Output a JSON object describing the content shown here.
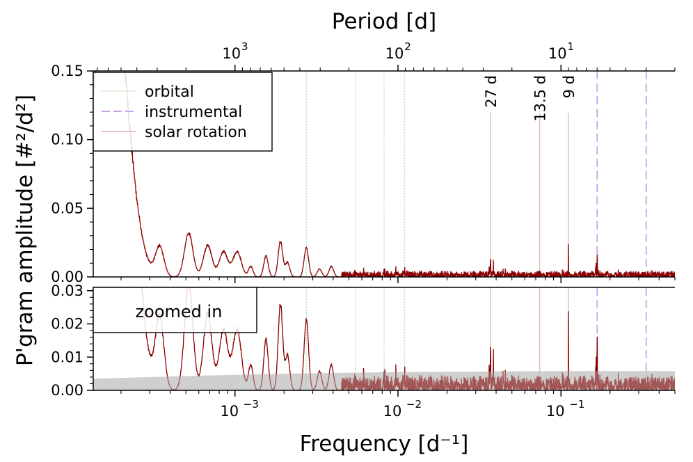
{
  "chart_data": {
    "type": "line",
    "xlabel": "Frequency [d⁻¹]",
    "top_xlabel": "Period [d]",
    "ylabel": "P'gram amplitude [#²/d²]",
    "x_scale": "log",
    "xlim": [
      0.000135,
      0.5
    ],
    "x_ticks": [
      {
        "value": 0.001,
        "label": "10",
        "exp": "−3"
      },
      {
        "value": 0.01,
        "label": "10",
        "exp": "−2"
      },
      {
        "value": 0.1,
        "label": "10",
        "exp": "−1"
      }
    ],
    "top_ticks": [
      {
        "period": 1000,
        "label": "10",
        "exp": "3"
      },
      {
        "period": 100,
        "label": "10",
        "exp": "2"
      },
      {
        "period": 10,
        "label": "10",
        "exp": "1"
      }
    ],
    "panels": [
      {
        "name": "main",
        "ylim": [
          0,
          0.15
        ],
        "y_ticks": [
          "0.00",
          "0.05",
          "0.10",
          "0.15"
        ],
        "y_tick_values": [
          0,
          0.05,
          0.1,
          0.15
        ]
      },
      {
        "name": "zoom",
        "ylim": [
          0,
          0.031
        ],
        "y_ticks": [
          "0.00",
          "0.01",
          "0.02",
          "0.03"
        ],
        "y_tick_values": [
          0,
          0.01,
          0.02,
          0.03
        ],
        "inset_label": "zoomed in"
      }
    ],
    "legend": {
      "position": "top-left",
      "entries": [
        {
          "label": "orbital",
          "color": "#b6dcb0",
          "style": "dotted"
        },
        {
          "label": "instrumental",
          "color": "#c9a2ec",
          "style": "dashed"
        },
        {
          "label": "solar rotation",
          "color": "#e3c2bd",
          "style": "solid"
        }
      ]
    },
    "reference_lines": {
      "orbital": [
        0.00274,
        0.00548,
        0.00822,
        0.01096
      ],
      "instrumental": [
        0.1667,
        0.3333
      ],
      "solar_rotation": [
        {
          "freq": 0.037,
          "label": "27 d"
        },
        {
          "freq": 0.074,
          "label": "13.5 d"
        },
        {
          "freq": 0.111,
          "label": "9 d"
        }
      ]
    },
    "peaks": [
      {
        "x": 0.000155,
        "y": 0.133
      },
      {
        "x": 0.00019,
        "y": 0.136
      },
      {
        "x": 0.000345,
        "y": 0.022
      },
      {
        "x": 0.00052,
        "y": 0.033
      },
      {
        "x": 0.00068,
        "y": 0.024
      },
      {
        "x": 0.00085,
        "y": 0.019
      },
      {
        "x": 0.00103,
        "y": 0.019
      },
      {
        "x": 0.00125,
        "y": 0.008
      },
      {
        "x": 0.00155,
        "y": 0.016
      },
      {
        "x": 0.0019,
        "y": 0.027
      },
      {
        "x": 0.0021,
        "y": 0.011
      },
      {
        "x": 0.00274,
        "y": 0.022
      },
      {
        "x": 0.0033,
        "y": 0.006
      },
      {
        "x": 0.0039,
        "y": 0.008
      },
      {
        "x": 0.0047,
        "y": 0.004
      },
      {
        "x": 0.0055,
        "y": 0.008
      },
      {
        "x": 0.0068,
        "y": 0.004
      },
      {
        "x": 0.0083,
        "y": 0.009
      },
      {
        "x": 0.0097,
        "y": 0.008
      },
      {
        "x": 0.011,
        "y": 0.009
      },
      {
        "x": 0.037,
        "y": 0.026
      },
      {
        "x": 0.0385,
        "y": 0.013
      },
      {
        "x": 0.111,
        "y": 0.025
      },
      {
        "x": 0.1667,
        "y": 0.029
      }
    ],
    "noise_floor": [
      {
        "x": 0.000135,
        "y": 0.0035
      },
      {
        "x": 0.0005,
        "y": 0.0043
      },
      {
        "x": 0.002,
        "y": 0.005
      },
      {
        "x": 0.01,
        "y": 0.0055
      },
      {
        "x": 0.1,
        "y": 0.0058
      },
      {
        "x": 0.5,
        "y": 0.0058
      }
    ],
    "colors": {
      "series": "#8b0000",
      "noise_band": "#bfbfbf",
      "orbital": "#b6dcb0",
      "instrumental": "#c9a2ec",
      "solar": "#e3c2bd"
    }
  }
}
